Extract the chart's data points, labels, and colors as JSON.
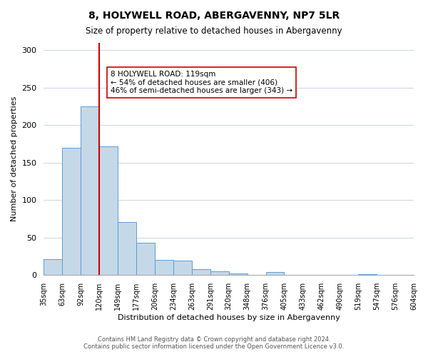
{
  "title": "8, HOLYWELL ROAD, ABERGAVENNY, NP7 5LR",
  "subtitle": "Size of property relative to detached houses in Abergavenny",
  "xlabel": "Distribution of detached houses by size in Abergavenny",
  "ylabel": "Number of detached properties",
  "bar_values": [
    21,
    170,
    225,
    172,
    71,
    43,
    20,
    19,
    8,
    5,
    2,
    0,
    4,
    0,
    0,
    0,
    0,
    1,
    0,
    0
  ],
  "bin_labels": [
    "35sqm",
    "63sqm",
    "92sqm",
    "120sqm",
    "149sqm",
    "177sqm",
    "206sqm",
    "234sqm",
    "263sqm",
    "291sqm",
    "320sqm",
    "348sqm",
    "376sqm",
    "405sqm",
    "433sqm",
    "462sqm",
    "490sqm",
    "519sqm",
    "547sqm",
    "576sqm",
    "604sqm"
  ],
  "bar_color": "#c5d8e8",
  "bar_edge_color": "#5b9bd5",
  "vline_x": 3,
  "vline_color": "#cc0000",
  "annotation_title": "8 HOLYWELL ROAD: 119sqm",
  "annotation_line1": "← 54% of detached houses are smaller (406)",
  "annotation_line2": "46% of semi-detached houses are larger (343) →",
  "annotation_box_color": "#ffffff",
  "annotation_box_edge": "#cc0000",
  "ylim": [
    0,
    310
  ],
  "footer1": "Contains HM Land Registry data © Crown copyright and database right 2024.",
  "footer2": "Contains public sector information licensed under the Open Government Licence v3.0.",
  "bg_color": "#ffffff",
  "grid_color": "#d0d8e8"
}
